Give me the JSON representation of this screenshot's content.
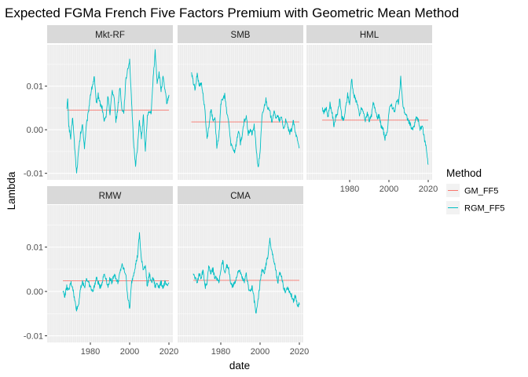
{
  "chart_data": {
    "type": "line",
    "title": "Expected FGMa French Five Factors Premium with Geometric Mean Method",
    "xlabel": "date",
    "ylabel": "Lambda",
    "x_ticks": [
      "1980",
      "2000",
      "2020"
    ],
    "y_ticks": [
      "-0.01",
      "0.00",
      "0.01"
    ],
    "xlim": [
      1958,
      2022
    ],
    "ylim": [
      -0.0115,
      0.0195
    ],
    "grid": true,
    "legend": {
      "title": "Method",
      "position": "right",
      "entries": [
        {
          "name": "GM_FF5",
          "color": "#F8766D"
        },
        {
          "name": "RGM_FF5",
          "color": "#00BFC4"
        }
      ]
    },
    "colors": {
      "GM_FF5": "#F8766D",
      "RGM_FF5": "#00BFC4",
      "panel_bg": "#EBEBEB",
      "strip_bg": "#D9D9D9"
    },
    "panels": [
      {
        "label": "Mkt-RF",
        "gm": 0.0045,
        "x_start": 1968,
        "x_end": 2020,
        "rgm_points": [
          [
            1968,
            0.005
          ],
          [
            1968.5,
            0.007
          ],
          [
            1969,
            0.001
          ],
          [
            1970,
            -0.002
          ],
          [
            1971,
            0.003
          ],
          [
            1972,
            -0.004
          ],
          [
            1973,
            -0.01
          ],
          [
            1974,
            -0.005
          ],
          [
            1975,
            -0.001
          ],
          [
            1976,
            0.001
          ],
          [
            1977,
            -0.004
          ],
          [
            1978,
            0.001
          ],
          [
            1979,
            0.004
          ],
          [
            1980,
            0.008
          ],
          [
            1981,
            0.01
          ],
          [
            1982,
            0.012
          ],
          [
            1983,
            0.006
          ],
          [
            1984,
            0.008
          ],
          [
            1985,
            0.006
          ],
          [
            1986,
            0.005
          ],
          [
            1987,
            0.002
          ],
          [
            1988,
            0.003
          ],
          [
            1989,
            0.008
          ],
          [
            1990,
            0.003
          ],
          [
            1991,
            0.009
          ],
          [
            1992,
            0.008
          ],
          [
            1993,
            0.002
          ],
          [
            1994,
            0.005
          ],
          [
            1995,
            0.01
          ],
          [
            1996,
            0.005
          ],
          [
            1997,
            0.004
          ],
          [
            1998,
            0.011
          ],
          [
            1999,
            0.014
          ],
          [
            2000,
            0.016
          ],
          [
            2001,
            0.006
          ],
          [
            2002,
            -0.003
          ],
          [
            2003,
            -0.008
          ],
          [
            2004,
            -0.004
          ],
          [
            2005,
            0.002
          ],
          [
            2006,
            -0.002
          ],
          [
            2007,
            0.003
          ],
          [
            2008,
            -0.005
          ],
          [
            2009,
            0.003
          ],
          [
            2010,
            0.004
          ],
          [
            2011,
            0.004
          ],
          [
            2012,
            0.012
          ],
          [
            2013,
            0.018
          ],
          [
            2014,
            0.011
          ],
          [
            2015,
            0.013
          ],
          [
            2016,
            0.009
          ],
          [
            2017,
            0.012
          ],
          [
            2018,
            0.009
          ],
          [
            2019,
            0.006
          ],
          [
            2020,
            0.008
          ]
        ]
      },
      {
        "label": "SMB",
        "gm": 0.0018,
        "x_start": 1965,
        "x_end": 2020,
        "rgm_points": [
          [
            1965,
            0.013
          ],
          [
            1966,
            0.011
          ],
          [
            1967,
            0.009
          ],
          [
            1968,
            0.013
          ],
          [
            1969,
            0.01
          ],
          [
            1970,
            0.011
          ],
          [
            1971,
            0.008
          ],
          [
            1972,
            0.004
          ],
          [
            1973,
            -0.002
          ],
          [
            1974,
            0.001
          ],
          [
            1975,
            0.005
          ],
          [
            1976,
            0.002
          ],
          [
            1977,
            0.003
          ],
          [
            1978,
            -0.004
          ],
          [
            1979,
            -0.002
          ],
          [
            1980,
            0.006
          ],
          [
            1981,
            0.007
          ],
          [
            1982,
            0.008
          ],
          [
            1983,
            0.004
          ],
          [
            1984,
            0.002
          ],
          [
            1985,
            -0.003
          ],
          [
            1986,
            -0.004
          ],
          [
            1987,
            -0.005
          ],
          [
            1988,
            -0.003
          ],
          [
            1989,
            0.0
          ],
          [
            1990,
            -0.003
          ],
          [
            1991,
            -0.001
          ],
          [
            1992,
            0.002
          ],
          [
            1993,
            0.003
          ],
          [
            1994,
            -0.001
          ],
          [
            1995,
            0.0
          ],
          [
            1996,
            -0.001
          ],
          [
            1997,
            0.001
          ],
          [
            1998,
            -0.004
          ],
          [
            1999,
            -0.009
          ],
          [
            2000,
            -0.005
          ],
          [
            2001,
            0.003
          ],
          [
            2002,
            0.005
          ],
          [
            2003,
            0.007
          ],
          [
            2004,
            0.005
          ],
          [
            2005,
            0.004
          ],
          [
            2006,
            0.002
          ],
          [
            2007,
            0.004
          ],
          [
            2008,
            0.003
          ],
          [
            2009,
            0.003
          ],
          [
            2010,
            0.002
          ],
          [
            2011,
            0.003
          ],
          [
            2012,
            0.0
          ],
          [
            2013,
            0.002
          ],
          [
            2014,
            0.001
          ],
          [
            2015,
            -0.001
          ],
          [
            2016,
            0.0
          ],
          [
            2017,
            0.002
          ],
          [
            2018,
            -0.001
          ],
          [
            2019,
            -0.002
          ],
          [
            2020,
            -0.004
          ]
        ]
      },
      {
        "label": "HML",
        "gm": 0.0022,
        "x_start": 1966,
        "x_end": 2020,
        "rgm_points": [
          [
            1966,
            0.005
          ],
          [
            1967,
            0.004
          ],
          [
            1968,
            0.005
          ],
          [
            1969,
            0.003
          ],
          [
            1970,
            0.006
          ],
          [
            1971,
            0.004
          ],
          [
            1972,
            0.001
          ],
          [
            1973,
            0.003
          ],
          [
            1974,
            0.004
          ],
          [
            1975,
            0.007
          ],
          [
            1976,
            0.003
          ],
          [
            1977,
            0.002
          ],
          [
            1978,
            0.005
          ],
          [
            1979,
            0.008
          ],
          [
            1980,
            0.006
          ],
          [
            1981,
            0.012
          ],
          [
            1982,
            0.008
          ],
          [
            1983,
            0.007
          ],
          [
            1984,
            0.006
          ],
          [
            1985,
            0.003
          ],
          [
            1986,
            0.005
          ],
          [
            1987,
            0.004
          ],
          [
            1988,
            0.002
          ],
          [
            1989,
            0.004
          ],
          [
            1990,
            0.002
          ],
          [
            1991,
            0.003
          ],
          [
            1992,
            0.006
          ],
          [
            1993,
            0.005
          ],
          [
            1994,
            0.003
          ],
          [
            1995,
            0.003
          ],
          [
            1996,
            0.001
          ],
          [
            1997,
            0.0
          ],
          [
            1998,
            -0.002
          ],
          [
            1999,
            -0.001
          ],
          [
            2000,
            0.004
          ],
          [
            2001,
            0.006
          ],
          [
            2002,
            0.005
          ],
          [
            2003,
            0.004
          ],
          [
            2004,
            0.007
          ],
          [
            2005,
            0.006
          ],
          [
            2006,
            0.012
          ],
          [
            2007,
            0.006
          ],
          [
            2008,
            0.004
          ],
          [
            2009,
            0.003
          ],
          [
            2010,
            0.002
          ],
          [
            2011,
            0.001
          ],
          [
            2012,
            0.0
          ],
          [
            2013,
            0.001
          ],
          [
            2014,
            0.003
          ],
          [
            2015,
            0.002
          ],
          [
            2016,
            0.0
          ],
          [
            2017,
            0.001
          ],
          [
            2018,
            -0.002
          ],
          [
            2019,
            -0.004
          ],
          [
            2020,
            -0.008
          ]
        ]
      },
      {
        "label": "RMW",
        "gm": 0.0024,
        "x_start": 1966,
        "x_end": 2020,
        "rgm_points": [
          [
            1966,
            0.0
          ],
          [
            1967,
            -0.001
          ],
          [
            1968,
            0.001
          ],
          [
            1969,
            0.0
          ],
          [
            1970,
            0.002
          ],
          [
            1971,
            0.001
          ],
          [
            1972,
            -0.002
          ],
          [
            1973,
            -0.004
          ],
          [
            1974,
            -0.003
          ],
          [
            1975,
            0.001
          ],
          [
            1976,
            0.002
          ],
          [
            1977,
            0.001
          ],
          [
            1978,
            0.003
          ],
          [
            1979,
            0.002
          ],
          [
            1980,
            0.001
          ],
          [
            1981,
            0.0
          ],
          [
            1982,
            0.001
          ],
          [
            1983,
            0.003
          ],
          [
            1984,
            0.002
          ],
          [
            1985,
            0.001
          ],
          [
            1986,
            0.002
          ],
          [
            1987,
            0.004
          ],
          [
            1988,
            0.003
          ],
          [
            1989,
            0.001
          ],
          [
            1990,
            0.003
          ],
          [
            1991,
            0.002
          ],
          [
            1992,
            0.004
          ],
          [
            1993,
            0.003
          ],
          [
            1994,
            0.002
          ],
          [
            1995,
            0.004
          ],
          [
            1996,
            0.006
          ],
          [
            1997,
            0.005
          ],
          [
            1998,
            0.004
          ],
          [
            1999,
            -0.001
          ],
          [
            2000,
            -0.004
          ],
          [
            2001,
            0.002
          ],
          [
            2002,
            0.004
          ],
          [
            2003,
            0.006
          ],
          [
            2004,
            0.008
          ],
          [
            2005,
            0.013
          ],
          [
            2006,
            0.007
          ],
          [
            2007,
            0.005
          ],
          [
            2008,
            0.006
          ],
          [
            2009,
            0.001
          ],
          [
            2010,
            0.004
          ],
          [
            2011,
            0.002
          ],
          [
            2012,
            0.003
          ],
          [
            2013,
            0.001
          ],
          [
            2014,
            0.002
          ],
          [
            2015,
            0.001
          ],
          [
            2016,
            0.002
          ],
          [
            2017,
            0.001
          ],
          [
            2018,
            0.002
          ],
          [
            2019,
            0.001
          ],
          [
            2020,
            0.002
          ]
        ]
      },
      {
        "label": "CMA",
        "gm": 0.0025,
        "x_start": 1966,
        "x_end": 2020,
        "rgm_points": [
          [
            1966,
            0.004
          ],
          [
            1967,
            0.003
          ],
          [
            1968,
            0.002
          ],
          [
            1969,
            0.004
          ],
          [
            1970,
            0.003
          ],
          [
            1971,
            0.005
          ],
          [
            1972,
            0.001
          ],
          [
            1973,
            0.002
          ],
          [
            1974,
            0.006
          ],
          [
            1975,
            0.004
          ],
          [
            1976,
            0.005
          ],
          [
            1977,
            0.003
          ],
          [
            1978,
            0.003
          ],
          [
            1979,
            0.002
          ],
          [
            1980,
            0.005
          ],
          [
            1981,
            0.007
          ],
          [
            1982,
            0.004
          ],
          [
            1983,
            0.006
          ],
          [
            1984,
            0.005
          ],
          [
            1985,
            0.002
          ],
          [
            1986,
            0.001
          ],
          [
            1987,
            0.002
          ],
          [
            1988,
            0.003
          ],
          [
            1989,
            0.005
          ],
          [
            1990,
            0.004
          ],
          [
            1991,
            0.003
          ],
          [
            1992,
            0.002
          ],
          [
            1993,
            0.004
          ],
          [
            1994,
            0.001
          ],
          [
            1995,
            0.0
          ],
          [
            1996,
            0.001
          ],
          [
            1997,
            -0.002
          ],
          [
            1998,
            -0.005
          ],
          [
            1999,
            -0.002
          ],
          [
            2000,
            0.002
          ],
          [
            2001,
            0.005
          ],
          [
            2002,
            0.004
          ],
          [
            2003,
            0.006
          ],
          [
            2004,
            0.008
          ],
          [
            2005,
            0.012
          ],
          [
            2006,
            0.009
          ],
          [
            2007,
            0.007
          ],
          [
            2008,
            0.005
          ],
          [
            2009,
            0.002
          ],
          [
            2010,
            0.004
          ],
          [
            2011,
            0.003
          ],
          [
            2012,
            0.001
          ],
          [
            2013,
            0.0
          ],
          [
            2014,
            0.001
          ],
          [
            2015,
            0.0
          ],
          [
            2016,
            -0.001
          ],
          [
            2017,
            -0.002
          ],
          [
            2018,
            -0.001
          ],
          [
            2019,
            -0.003
          ],
          [
            2020,
            -0.003
          ]
        ]
      }
    ]
  }
}
